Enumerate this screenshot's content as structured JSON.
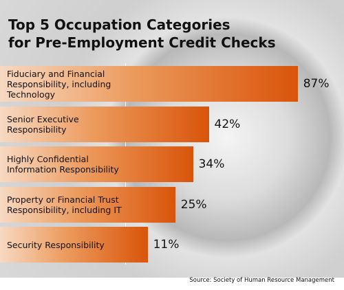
{
  "chart_data": {
    "type": "bar",
    "orientation": "horizontal",
    "title": [
      "Top 5 Occupation Categories",
      "for Pre-Employment Credit Checks"
    ],
    "categories": [
      "Fiduciary and Financial Responsibility, including Technology",
      "Senior Executive Responsibility",
      "Highly Confidential Information Responsibility",
      "Property or Financial Trust Responsibility, including IT",
      "Security Responsibility"
    ],
    "values": [
      87,
      42,
      34,
      25,
      11
    ],
    "value_labels": [
      "87%",
      "42%",
      "34%",
      "25%",
      "11%"
    ],
    "xlim": [
      0,
      100
    ],
    "source": "Source: Society of Human Resource Management"
  }
}
